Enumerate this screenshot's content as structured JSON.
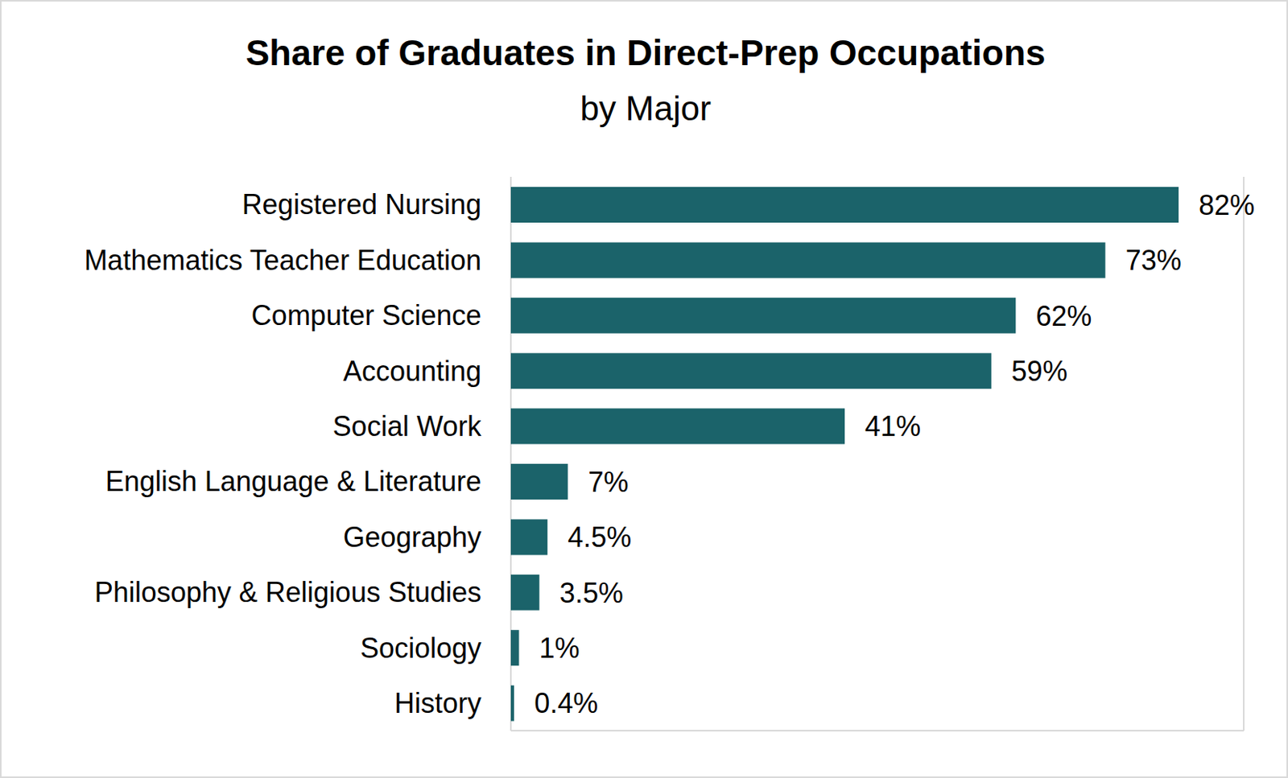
{
  "chart_data": {
    "type": "bar",
    "title": "Share of Graduates in Direct-Prep Occupations",
    "subtitle": "by Major",
    "orientation": "horizontal",
    "categories": [
      "Registered Nursing",
      "Mathematics Teacher Education",
      "Computer Science",
      "Accounting",
      "Social Work",
      "English Language & Literature",
      "Geography",
      "Philosophy & Religious Studies",
      "Sociology",
      "History"
    ],
    "values": [
      82,
      73,
      62,
      59,
      41,
      7,
      4.5,
      3.5,
      1,
      0.4
    ],
    "value_labels": [
      "82%",
      "73%",
      "62%",
      "59%",
      "41%",
      "7%",
      "4.5%",
      "3.5%",
      "1%",
      "0.4%"
    ],
    "color": "#1b636a",
    "xlim": [
      0,
      90
    ],
    "xticks": [
      0,
      10,
      20,
      30,
      40,
      50,
      60,
      70,
      80,
      90
    ],
    "grid": true,
    "data_labels": true,
    "tick_labels": "y"
  }
}
